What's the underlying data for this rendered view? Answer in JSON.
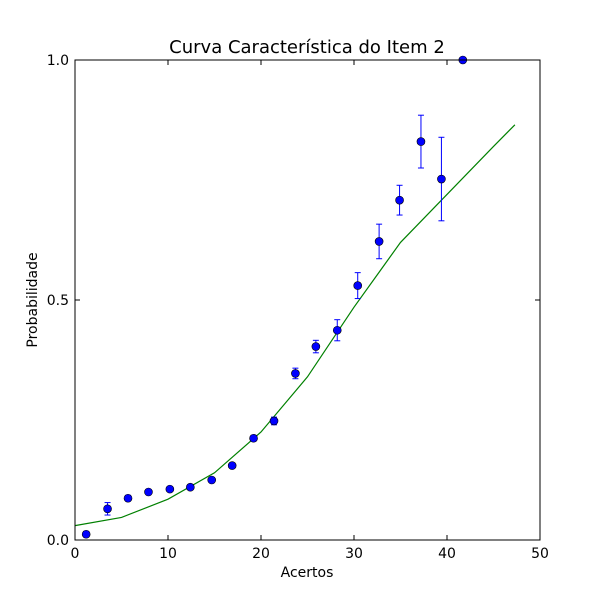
{
  "chart_data": {
    "type": "scatter",
    "title": "Curva Característica do Item 2",
    "xlabel": "Acertos",
    "ylabel": "Probabilidade",
    "xlim": [
      0,
      50
    ],
    "ylim": [
      0.0,
      1.0
    ],
    "xticks": [
      "0",
      "10",
      "20",
      "30",
      "40",
      "50"
    ],
    "yticks": [
      "0.0",
      "0.5",
      "1.0"
    ],
    "grid": false,
    "legend": "none",
    "series": [
      {
        "kind": "points_with_errorbars",
        "color": "#0000ff",
        "points": [
          {
            "x": 1.2,
            "y": 0.012,
            "err": 0.006
          },
          {
            "x": 3.5,
            "y": 0.065,
            "err": 0.013
          },
          {
            "x": 5.7,
            "y": 0.087,
            "err": 0.006
          },
          {
            "x": 7.9,
            "y": 0.1,
            "err": 0.004
          },
          {
            "x": 10.2,
            "y": 0.106,
            "err": 0.004
          },
          {
            "x": 12.4,
            "y": 0.11,
            "err": 0.004
          },
          {
            "x": 14.7,
            "y": 0.125,
            "err": 0.004
          },
          {
            "x": 16.9,
            "y": 0.155,
            "err": 0.004
          },
          {
            "x": 19.2,
            "y": 0.212,
            "err": 0.006
          },
          {
            "x": 21.4,
            "y": 0.248,
            "err": 0.008
          },
          {
            "x": 23.7,
            "y": 0.347,
            "err": 0.011
          },
          {
            "x": 25.9,
            "y": 0.403,
            "err": 0.013
          },
          {
            "x": 28.2,
            "y": 0.437,
            "err": 0.022
          },
          {
            "x": 30.4,
            "y": 0.53,
            "err": 0.027
          },
          {
            "x": 32.7,
            "y": 0.622,
            "err": 0.036
          },
          {
            "x": 34.9,
            "y": 0.708,
            "err": 0.031
          },
          {
            "x": 37.2,
            "y": 0.83,
            "err": 0.055
          },
          {
            "x": 39.4,
            "y": 0.752,
            "err": 0.087
          },
          {
            "x": 41.7,
            "y": 1.0,
            "err": 0.0
          }
        ]
      },
      {
        "kind": "fitted_curve",
        "color": "#008000",
        "curve": [
          {
            "x": 0,
            "y": 0.03
          },
          {
            "x": 5,
            "y": 0.047
          },
          {
            "x": 10,
            "y": 0.085
          },
          {
            "x": 15,
            "y": 0.14
          },
          {
            "x": 20,
            "y": 0.225
          },
          {
            "x": 25,
            "y": 0.34
          },
          {
            "x": 30,
            "y": 0.485
          },
          {
            "x": 35,
            "y": 0.62
          },
          {
            "x": 40,
            "y": 0.72
          },
          {
            "x": 45,
            "y": 0.82
          },
          {
            "x": 47.3,
            "y": 0.865
          }
        ]
      }
    ]
  }
}
